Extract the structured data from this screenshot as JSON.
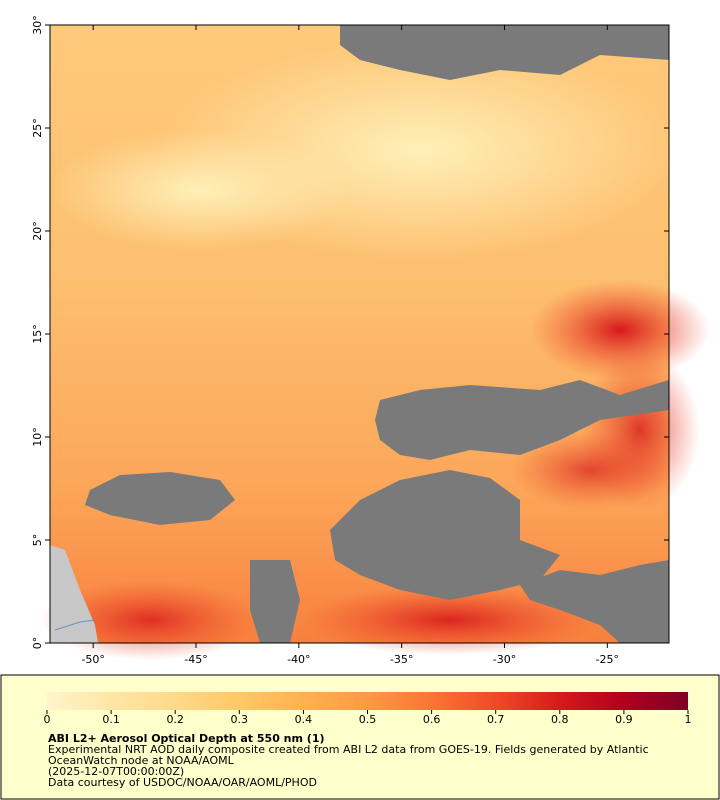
{
  "map": {
    "xlim": [
      -52.1,
      -22
    ],
    "ylim": [
      0,
      30
    ],
    "xticks": [
      {
        "value": -50,
        "label": "-50°"
      },
      {
        "value": -45,
        "label": "-45°"
      },
      {
        "value": -40,
        "label": "-40°"
      },
      {
        "value": -35,
        "label": "-35°"
      },
      {
        "value": -30,
        "label": "-30°"
      },
      {
        "value": -25,
        "label": "-25°"
      }
    ],
    "yticks": [
      {
        "value": 0,
        "label": "0°"
      },
      {
        "value": 5,
        "label": "5°"
      },
      {
        "value": 10,
        "label": "10°"
      },
      {
        "value": 15,
        "label": "15°"
      },
      {
        "value": 20,
        "label": "20°"
      },
      {
        "value": 25,
        "label": "25°"
      },
      {
        "value": 30,
        "label": "30°"
      }
    ],
    "colorbar": {
      "lim": [
        0,
        1
      ],
      "ticks": [
        0,
        0.1,
        0.2,
        0.3,
        0.4,
        0.5,
        0.6,
        0.7,
        0.8,
        0.9,
        1
      ],
      "colors": [
        "#fff4cc",
        "#ffe6a6",
        "#fed98a",
        "#fec966",
        "#fdb250",
        "#fd9a44",
        "#fc7434",
        "#f04a28",
        "#d7191c",
        "#b1001e",
        "#800026"
      ]
    },
    "title": "ABI L2+ Aerosol Optical Depth at 550 nm (1)",
    "notes": [
      "Experimental NRT AOD daily composite created from ABI L2 data from GOES-19. Fields generated by Atlantic",
      "OceanWatch node at NOAA/AOML",
      "(2025-12-07T00:00:00Z)",
      "Data courtesy of USDOC/NOAA/OAR/AOML/PHOD"
    ]
  }
}
